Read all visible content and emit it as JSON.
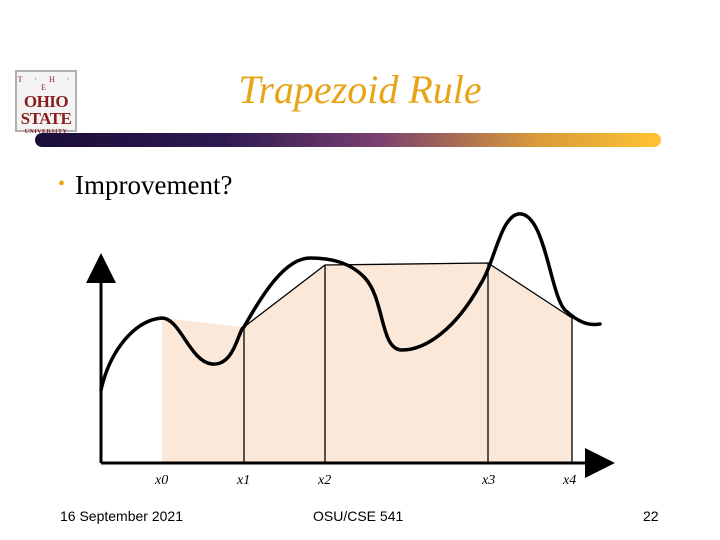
{
  "logo": {
    "line1": "T · H · E",
    "line2": "OHIO",
    "line3": "STATE",
    "line4": "UNIVERSITY"
  },
  "slide": {
    "title": "Trapezoid Rule",
    "bullet": "Improvement?"
  },
  "diagram": {
    "x_labels": [
      "x0",
      "x1",
      "x2",
      "x3",
      "x4"
    ],
    "colors": {
      "fill": "#fce8d8",
      "curve": "#000000",
      "accent": "#e8a317"
    }
  },
  "footer": {
    "date": "16 September 2021",
    "course": "OSU/CSE 541",
    "page": "22"
  }
}
